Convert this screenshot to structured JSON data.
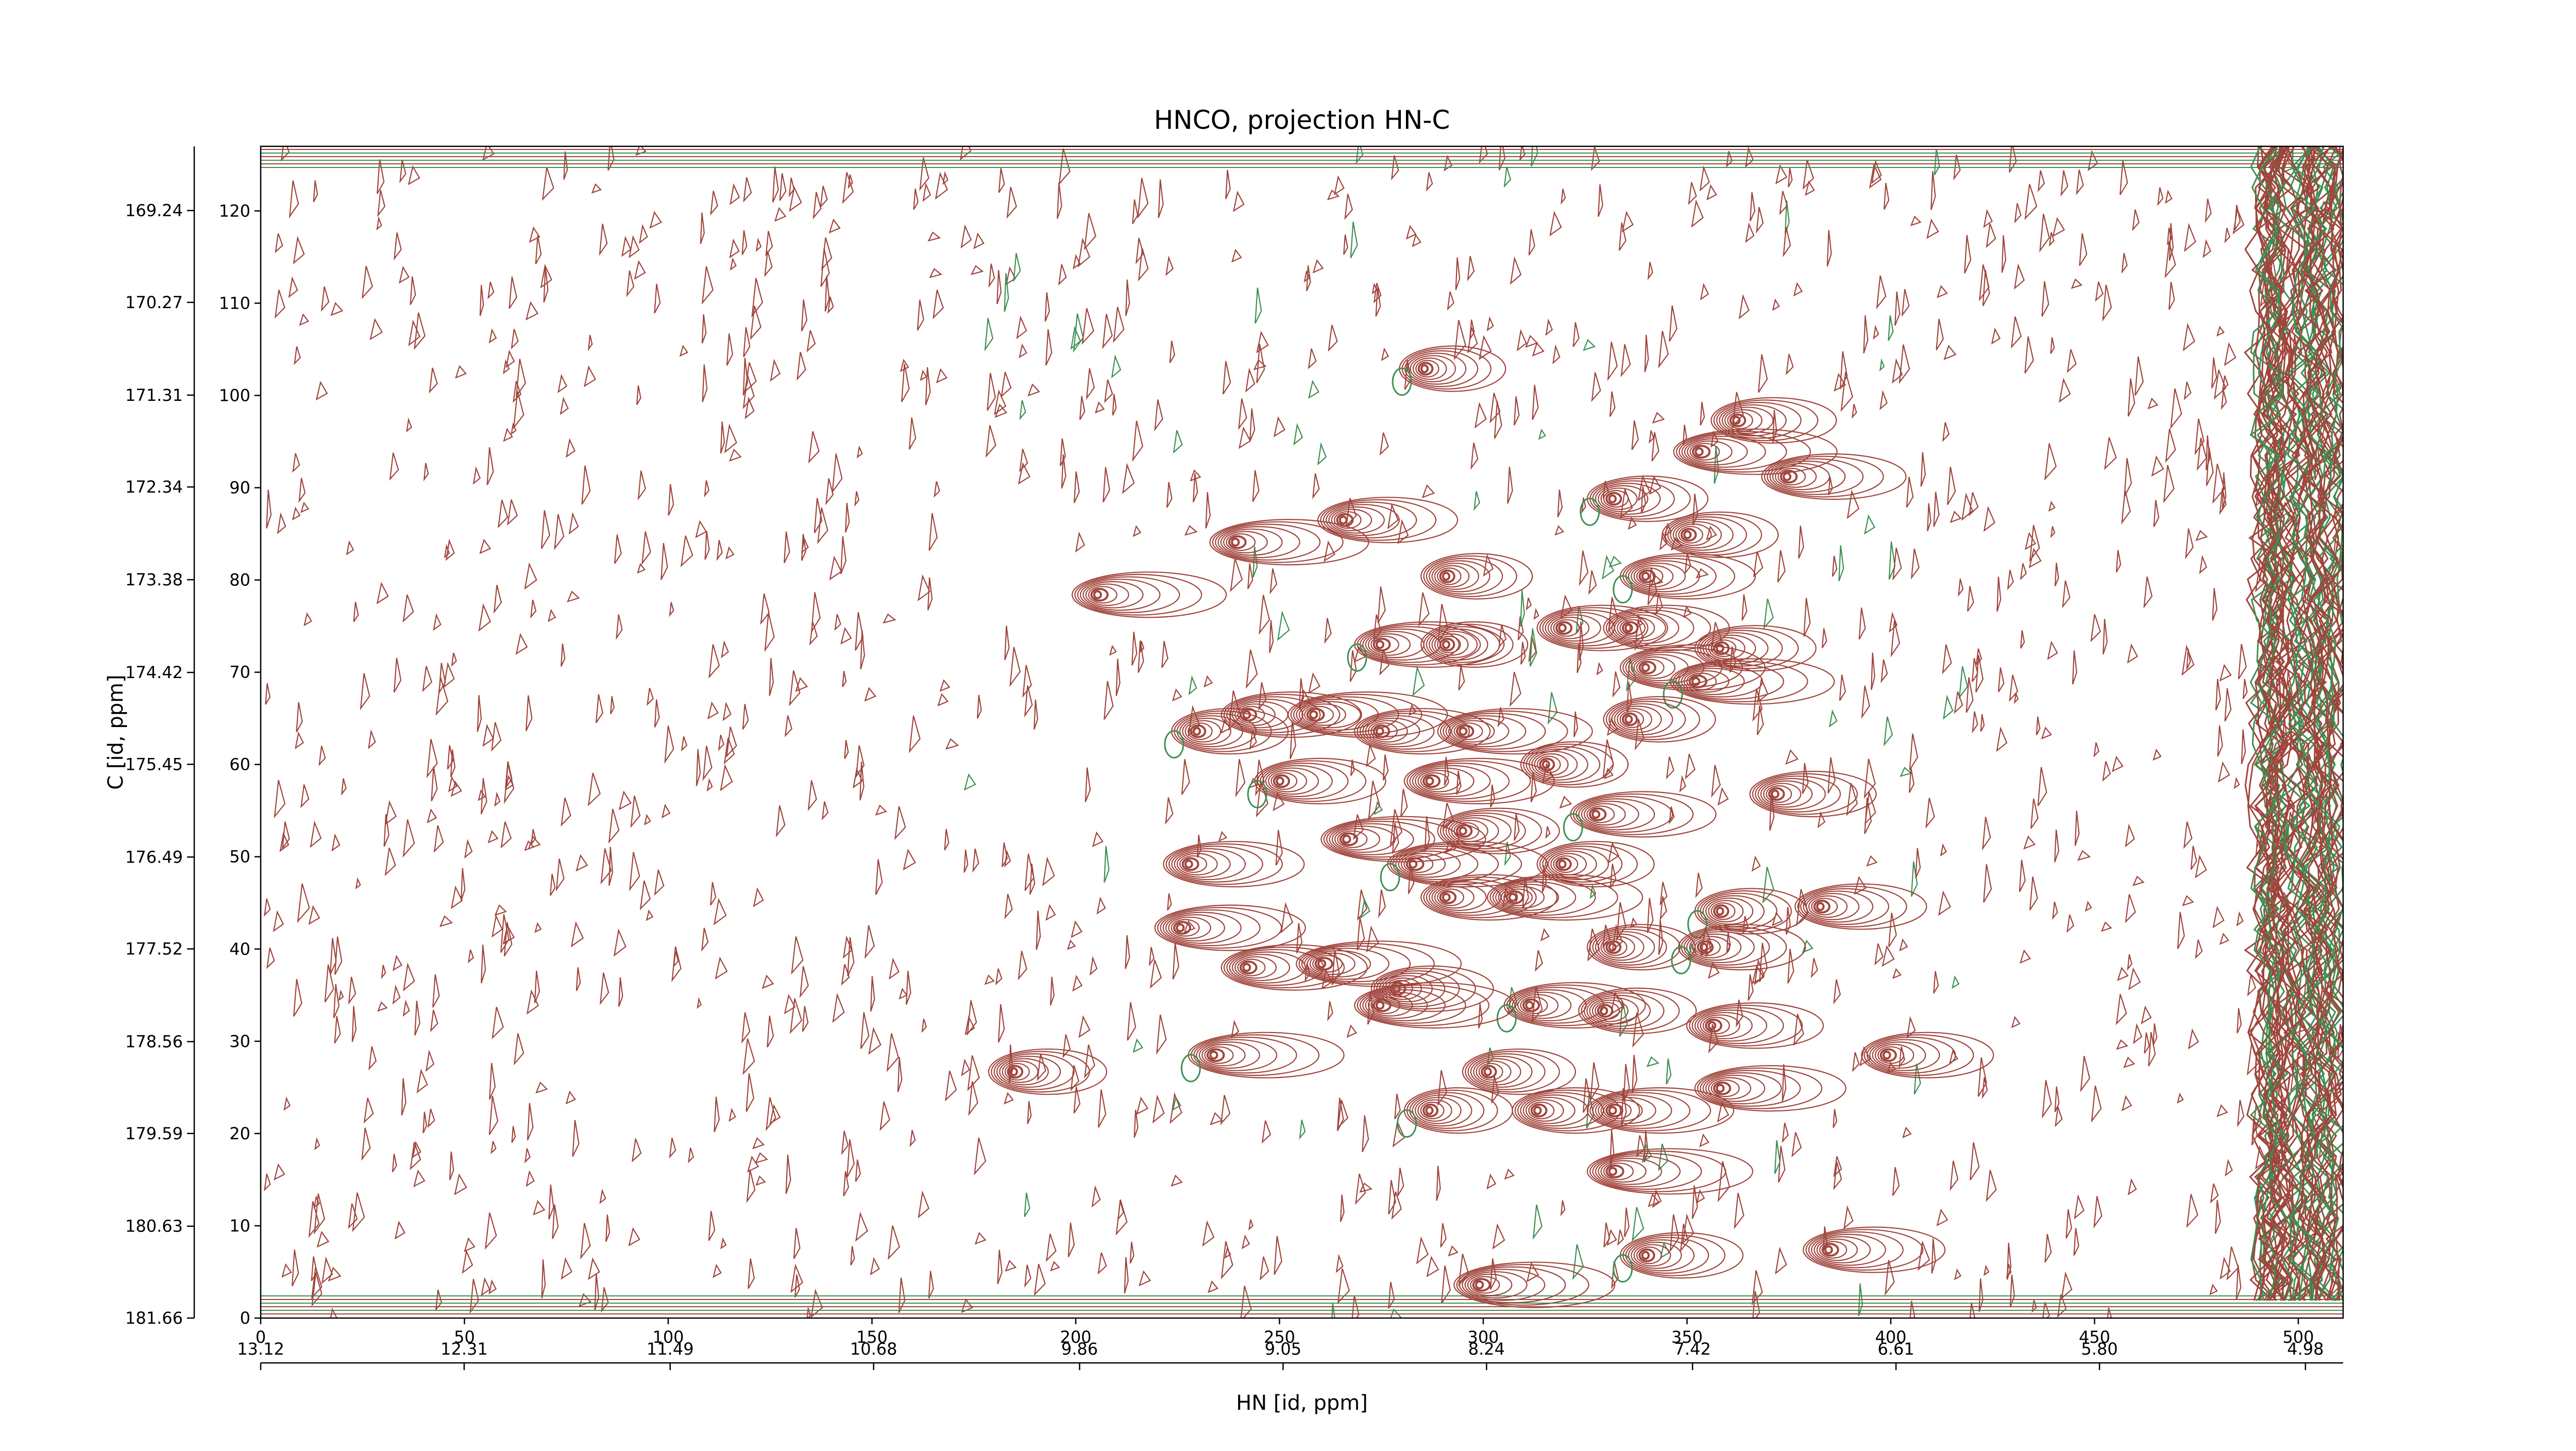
{
  "chart_data": {
    "type": "contour",
    "title": "HNCO, projection HN-C",
    "xlabel": "HN [id, ppm]",
    "ylabel": "C [id, ppm]",
    "xlim": [
      0,
      511
    ],
    "ylim": [
      0,
      127
    ],
    "xticks": [
      0,
      50,
      100,
      150,
      200,
      250,
      300,
      350,
      400,
      450,
      500
    ],
    "yticks": [
      0,
      10,
      20,
      30,
      40,
      50,
      60,
      70,
      80,
      90,
      100,
      110,
      120
    ],
    "x2lim": [
      13.12,
      4.83
    ],
    "x2ticks": [
      13.12,
      12.31,
      11.49,
      10.68,
      9.86,
      9.05,
      8.24,
      7.42,
      6.61,
      {
        "value": 5.8,
        "label": "5.80"
      },
      4.98
    ],
    "y2lim": [
      181.66,
      168.52
    ],
    "y2ticks": [
      181.66,
      180.63,
      179.59,
      178.56,
      177.52,
      176.49,
      175.45,
      174.42,
      173.38,
      172.34,
      171.31,
      170.27,
      169.24
    ],
    "color": "#a0453c",
    "negative_color": "#3d8f52",
    "x": [
      285.5,
      362,
      374.4,
      352.8,
      331.6,
      265.5,
      239,
      350,
      339.7,
      205.2,
      290.8,
      319.3,
      274.5,
      290.8,
      335.6,
      339.7,
      352,
      358,
      241.8,
      258.2,
      229.6,
      274.5,
      294.9,
      335.6,
      250,
      286.7,
      315.3,
      371.5,
      327.5,
      266.3,
      294.9,
      227.6,
      282.6,
      319.3,
      290.8,
      307.1,
      358,
      382.6,
      225.5,
      331.6,
      354,
      241.8,
      260.2,
      278.6,
      311.2,
      274.5,
      329.5,
      356,
      233.7,
      301,
      398.9,
      358,
      286.7,
      313.2,
      331.6,
      331.6,
      339.7,
      384.6,
      298.9,
      184.7
    ],
    "values": [
      102.9,
      97.3,
      91.2,
      93.9,
      88.8,
      86.5,
      84.1,
      84.9,
      80.4,
      78.4,
      80.4,
      74.8,
      73,
      73,
      74.8,
      70.5,
      69,
      72.6,
      65.4,
      65.4,
      63.6,
      63.6,
      63.6,
      64.9,
      58.2,
      58.2,
      60,
      56.8,
      54.6,
      51.9,
      52.8,
      49.2,
      49.2,
      49.2,
      45.6,
      45.6,
      44.1,
      44.6,
      42.3,
      40.2,
      40.2,
      38,
      38.4,
      35.7,
      33.9,
      33.9,
      33.3,
      31.7,
      28.5,
      26.7,
      28.5,
      24.9,
      22.5,
      22.5,
      22.5,
      15.9,
      6.8,
      7.4,
      3.6,
      26.7
    ]
  }
}
